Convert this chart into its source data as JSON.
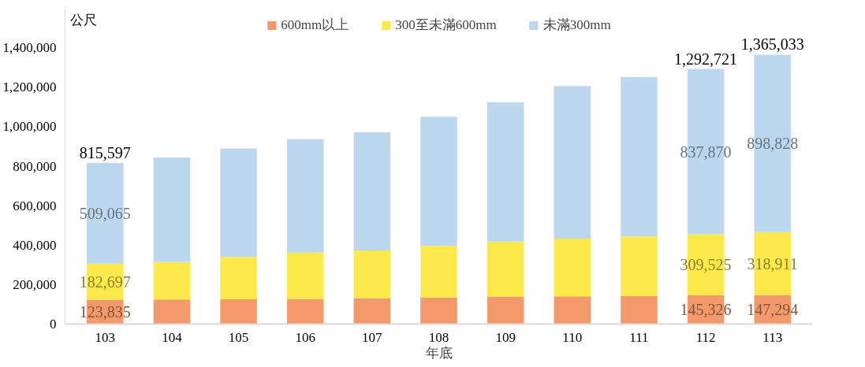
{
  "chart_data": {
    "type": "bar",
    "stacked": true,
    "ylabel": "公尺",
    "xlabel": "年底",
    "categories": [
      "103",
      "104",
      "105",
      "106",
      "107",
      "108",
      "109",
      "110",
      "111",
      "112",
      "113"
    ],
    "series": [
      {
        "name": "600mm以上",
        "color": "#f4996a",
        "values": [
          123835,
          125000,
          126000,
          128000,
          131000,
          135000,
          140000,
          141000,
          143000,
          145326,
          147294
        ],
        "value_labels": [
          "123,835",
          null,
          null,
          null,
          null,
          null,
          null,
          null,
          null,
          "145,326",
          "147,294"
        ]
      },
      {
        "name": "300至未滿600mm",
        "color": "#fee94a",
        "values": [
          182697,
          189000,
          214000,
          234000,
          242000,
          261000,
          278000,
          292000,
          301000,
          309525,
          318911
        ],
        "value_labels": [
          "182,697",
          null,
          null,
          null,
          null,
          null,
          null,
          null,
          null,
          "309,525",
          "318,911"
        ]
      },
      {
        "name": "未滿300mm",
        "color": "#bdd7ee",
        "values": [
          509065,
          530000,
          550000,
          575000,
          599000,
          654000,
          706000,
          773000,
          808000,
          837870,
          898828
        ],
        "value_labels": [
          "509,065",
          null,
          null,
          null,
          null,
          null,
          null,
          null,
          null,
          "837,870",
          "898,828"
        ]
      }
    ],
    "totals": [
      "815,597",
      null,
      null,
      null,
      null,
      null,
      null,
      null,
      null,
      "1,292,721",
      "1,365,033"
    ],
    "ylim": [
      0,
      1600000
    ],
    "yticks": [
      {
        "value": 0,
        "label": "0"
      },
      {
        "value": 200000,
        "label": "200,000"
      },
      {
        "value": 400000,
        "label": "400,000"
      },
      {
        "value": 600000,
        "label": "600,000"
      },
      {
        "value": 800000,
        "label": "800,000"
      },
      {
        "value": 1000000,
        "label": "1,000,000"
      },
      {
        "value": 1200000,
        "label": "1,200,000"
      },
      {
        "value": 1400000,
        "label": "1,400,000"
      }
    ],
    "grid": false,
    "legend": "top"
  }
}
